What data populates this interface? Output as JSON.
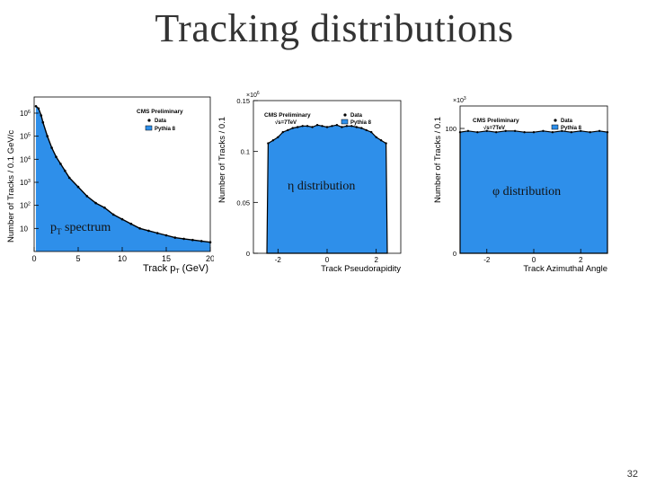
{
  "slide": {
    "title": "Tracking distributions",
    "page_number": "32"
  },
  "captions": {
    "pt": "pT spectrum",
    "pt_base": "p",
    "pt_sub": "T",
    "pt_rest": " spectrum",
    "eta": "η distribution",
    "phi": "φ distribution"
  },
  "colors": {
    "fill": "#2e8fea",
    "outline": "#000000",
    "data_marker": "#000000"
  },
  "chart_data": [
    {
      "type": "area",
      "name": "pt",
      "ylabel": "Number of Tracks / 0.1 GeV/c",
      "xlabel_base": "Track p",
      "xlabel_sub": "T",
      "xlabel_rest": " (GeV)",
      "legend": {
        "header": "CMS Preliminary",
        "data": "Data",
        "mc": "Pythia 8"
      },
      "log_y": true,
      "xlim": [
        0,
        20
      ],
      "ylim_exp": [
        0,
        6.7
      ],
      "y_ticks": [
        {
          "exp": 1,
          "label": "10"
        },
        {
          "exp": 2,
          "label": "10"
        },
        {
          "exp": 3,
          "label": "10"
        },
        {
          "exp": 4,
          "label": "10"
        },
        {
          "exp": 5,
          "label": "10"
        },
        {
          "exp": 6,
          "label": "10"
        }
      ],
      "y_tick_sups": [
        "",
        "2",
        "3",
        "4",
        "5",
        "6"
      ],
      "x_ticks": [
        0,
        5,
        10,
        15,
        20
      ],
      "x": [
        0.2,
        0.5,
        0.8,
        1.0,
        1.5,
        2.0,
        2.5,
        3.0,
        3.5,
        4.0,
        5.0,
        6.0,
        7.0,
        8.0,
        9.0,
        10.0,
        11.0,
        12.0,
        13.0,
        14.0,
        15.0,
        16.0,
        17.0,
        18.0,
        19.0,
        20.0
      ],
      "log10_y": [
        6.3,
        6.2,
        5.9,
        5.6,
        5.0,
        4.5,
        4.1,
        3.8,
        3.5,
        3.2,
        2.8,
        2.4,
        2.1,
        1.9,
        1.6,
        1.4,
        1.2,
        1.0,
        0.9,
        0.8,
        0.7,
        0.6,
        0.55,
        0.5,
        0.45,
        0.4
      ]
    },
    {
      "type": "area",
      "name": "eta",
      "ylabel": "Number of Tracks / 0.1",
      "xlabel": "Track Pseudorapidity",
      "legend": {
        "header": "CMS Preliminary",
        "energy": "√s=7TeV",
        "data": "Data",
        "mc": "Pythia 8"
      },
      "multiplier_base": "×10",
      "multiplier_exp": "6",
      "xlim": [
        -3,
        3
      ],
      "ylim": [
        0,
        0.15
      ],
      "y_ticks": [
        0,
        0.05,
        0.1,
        0.15
      ],
      "y_tick_labels": [
        "0",
        "0.05",
        "0.1",
        "0.15"
      ],
      "x_ticks": [
        -2,
        0,
        2
      ],
      "x": [
        -2.45,
        -2.4,
        -2.2,
        -2.0,
        -1.8,
        -1.6,
        -1.4,
        -1.2,
        -1.0,
        -0.8,
        -0.6,
        -0.4,
        -0.2,
        0.0,
        0.2,
        0.4,
        0.6,
        0.8,
        1.0,
        1.2,
        1.4,
        1.6,
        1.8,
        2.0,
        2.2,
        2.4,
        2.45
      ],
      "y": [
        0.0,
        0.108,
        0.111,
        0.114,
        0.119,
        0.121,
        0.123,
        0.124,
        0.125,
        0.125,
        0.124,
        0.126,
        0.125,
        0.124,
        0.125,
        0.126,
        0.124,
        0.125,
        0.125,
        0.124,
        0.123,
        0.121,
        0.119,
        0.114,
        0.111,
        0.108,
        0.0
      ]
    },
    {
      "type": "area",
      "name": "phi",
      "ylabel": "Number of Tracks / 0.1",
      "xlabel": "Track Azimuthal Angle",
      "legend": {
        "header": "CMS Preliminary",
        "energy": "√s=7TeV",
        "data": "Data",
        "mc": "Pythia 8"
      },
      "multiplier_base": "×10",
      "multiplier_exp": "3",
      "xlim": [
        -3.14,
        3.14
      ],
      "ylim": [
        0,
        118
      ],
      "y_ticks": [
        0,
        100
      ],
      "y_tick_labels": [
        "0",
        "100"
      ],
      "x_ticks": [
        -2,
        0,
        2
      ],
      "x": [
        -3.14,
        -2.8,
        -2.4,
        -2.0,
        -1.6,
        -1.2,
        -0.8,
        -0.4,
        0.0,
        0.4,
        0.8,
        1.2,
        1.6,
        2.0,
        2.4,
        2.8,
        3.14
      ],
      "y": [
        97,
        98,
        97,
        98,
        97,
        98,
        98,
        97,
        97,
        98,
        97,
        98,
        97,
        98,
        97,
        98,
        97
      ]
    }
  ]
}
